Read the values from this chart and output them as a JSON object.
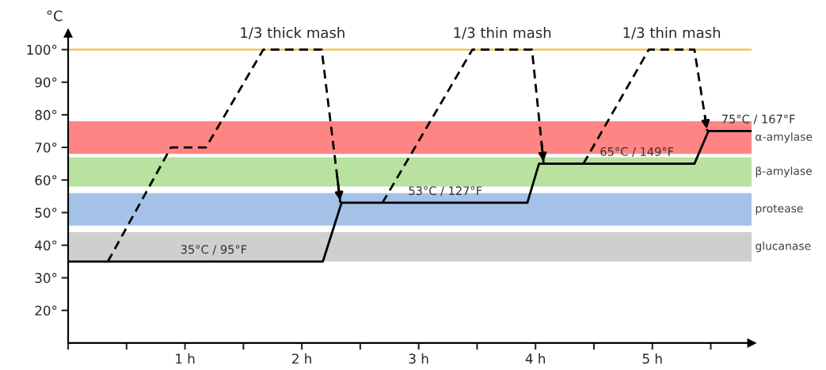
{
  "chart_data": {
    "type": "line",
    "ylabel": "°C",
    "series": [
      {
        "x": [
          0,
          2.18,
          2.34,
          3.93,
          4.03,
          5.36,
          5.48,
          5.85
        ],
        "values": [
          35,
          35,
          53,
          53,
          65,
          65,
          75,
          75
        ],
        "color": "#000000",
        "line_style": "solid"
      },
      {
        "name": "1/3 thick mash",
        "x": [
          0.34,
          0.88,
          1.18,
          1.67,
          2.17,
          2.33
        ],
        "values": [
          35,
          70,
          70,
          100,
          100,
          53
        ],
        "color": "#000000",
        "line_style": "dashed"
      },
      {
        "name": "1/3 thin mash",
        "x": [
          2.69,
          3.46,
          3.97,
          4.07
        ],
        "values": [
          53,
          100,
          100,
          65
        ],
        "color": "#000000",
        "line_style": "dashed"
      },
      {
        "name": "1/3 thin mash",
        "x": [
          4.41,
          4.97,
          5.36,
          5.47
        ],
        "values": [
          65,
          100,
          100,
          75
        ],
        "color": "#000000",
        "line_style": "dashed"
      }
    ],
    "xlim": [
      0,
      5.85
    ],
    "ylim": [
      10,
      105
    ],
    "xticks": [
      {
        "value": 0,
        "label": null
      },
      {
        "value": 0.5,
        "label": null
      },
      {
        "value": 1,
        "label": "1 h"
      },
      {
        "value": 1.5,
        "label": null
      },
      {
        "value": 2,
        "label": "2 h"
      },
      {
        "value": 2.5,
        "label": null
      },
      {
        "value": 3,
        "label": "3 h"
      },
      {
        "value": 3.5,
        "label": null
      },
      {
        "value": 4,
        "label": "4 h"
      },
      {
        "value": 4.5,
        "label": null
      },
      {
        "value": 5,
        "label": "5 h"
      },
      {
        "value": 5.5,
        "label": null
      }
    ],
    "yticks": [
      {
        "value": 20,
        "label": "20°"
      },
      {
        "value": 30,
        "label": "30°"
      },
      {
        "value": 40,
        "label": "40°"
      },
      {
        "value": 50,
        "label": "50°"
      },
      {
        "value": 60,
        "label": "60°"
      },
      {
        "value": 70,
        "label": "70°"
      },
      {
        "value": 80,
        "label": "80°"
      },
      {
        "value": 90,
        "label": "90°"
      },
      {
        "value": 100,
        "label": "100°"
      }
    ],
    "ref_lines": [
      {
        "axis": "y",
        "value": 100,
        "color": "#f0c040",
        "line_style": "solid"
      }
    ],
    "bands": [
      {
        "axis": "y",
        "from": 68,
        "to": 78,
        "label": "α-amylase",
        "color": "#ff2020"
      },
      {
        "axis": "y",
        "from": 58,
        "to": 67,
        "label": "β-amylase",
        "color": "#80c850"
      },
      {
        "axis": "y",
        "from": 46,
        "to": 56,
        "label": "protease",
        "color": "#5a8fd6"
      },
      {
        "axis": "y",
        "from": 35,
        "to": 44,
        "label": "glucanase",
        "color": "#a8a8a8"
      }
    ],
    "annotations": [
      {
        "text": "35°C / 95°F",
        "x": 0.96,
        "y": 35
      },
      {
        "text": "53°C / 127°F",
        "x": 2.91,
        "y": 53
      },
      {
        "text": "65°C / 149°F",
        "x": 4.55,
        "y": 65
      },
      {
        "text": "75°C / 167°F",
        "x": 5.59,
        "y": 75
      }
    ],
    "grid": false,
    "legend": false,
    "marker": "none"
  }
}
